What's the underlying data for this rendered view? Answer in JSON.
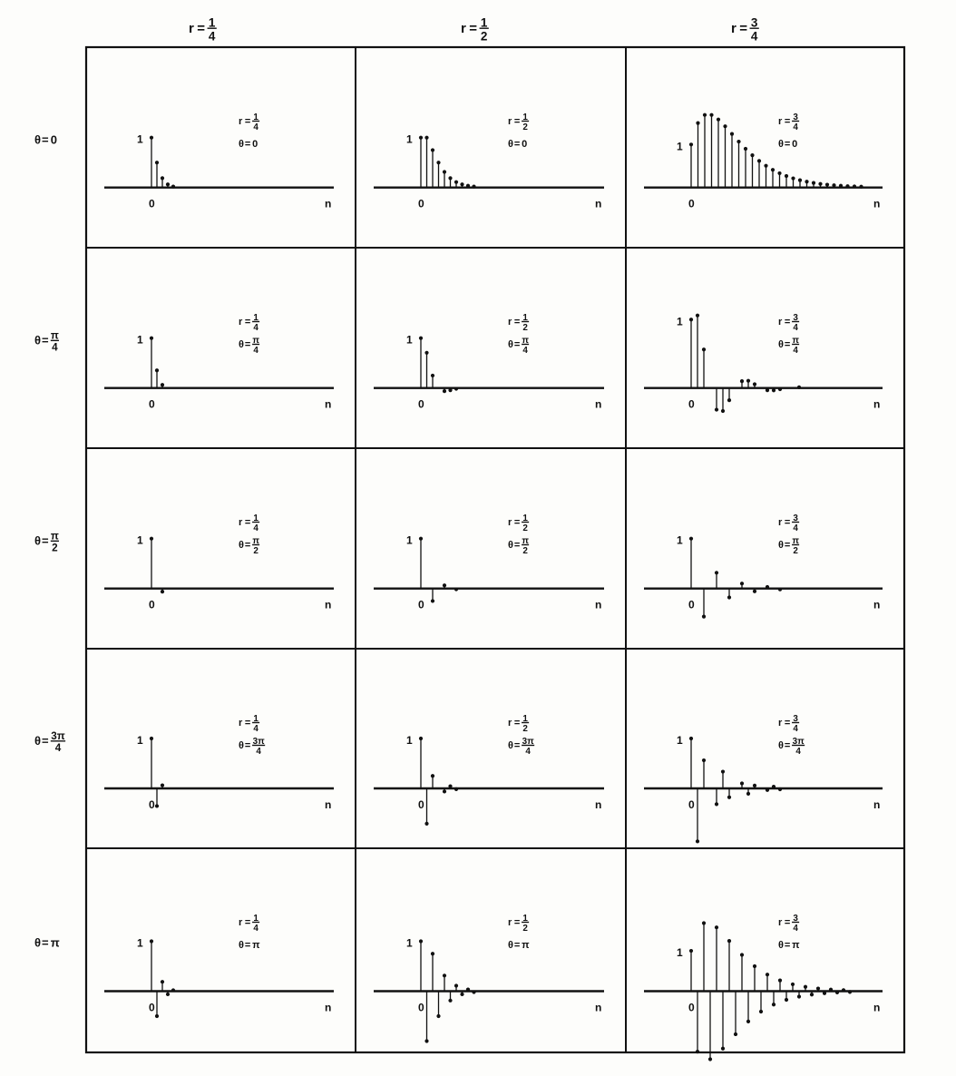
{
  "figure": {
    "column_headers": [
      {
        "lhs": "r",
        "num": "1",
        "den": "4"
      },
      {
        "lhs": "r",
        "num": "1",
        "den": "2"
      },
      {
        "lhs": "r",
        "num": "3",
        "den": "4"
      }
    ],
    "row_headers": [
      {
        "lhs": "θ",
        "whole": "0"
      },
      {
        "lhs": "θ",
        "num": "π",
        "den": "4"
      },
      {
        "lhs": "θ",
        "num": "π",
        "den": "2"
      },
      {
        "lhs": "θ",
        "num": "3π",
        "den": "4"
      },
      {
        "lhs": "θ",
        "whole": "π"
      }
    ],
    "axis_labels": {
      "origin": "0",
      "unit": "1",
      "x": "n"
    },
    "colors": {
      "ink": "#111111",
      "background": "#fdfdfb"
    }
  },
  "chart_data": {
    "type": "stem",
    "description_of_sequence": "impulse response h[n] = r^n sin((n+1)θ)/sin θ",
    "r_values": [
      0.25,
      0.5,
      0.75
    ],
    "theta_values": [
      0,
      0.7854,
      1.5708,
      2.3562,
      3.1416
    ],
    "r_labels": [
      "1/4",
      "1/2",
      "3/4"
    ],
    "theta_labels": [
      "0",
      "π/4",
      "π/2",
      "3π/4",
      "π"
    ],
    "n_range": [
      0,
      30
    ],
    "panels": [
      {
        "row": 0,
        "col": 0,
        "r": 0.25,
        "theta": 0,
        "label_r": {
          "lhs": "r",
          "num": "1",
          "den": "4"
        },
        "label_theta": {
          "lhs": "θ",
          "whole": "0"
        }
      },
      {
        "row": 0,
        "col": 1,
        "r": 0.5,
        "theta": 0,
        "label_r": {
          "lhs": "r",
          "num": "1",
          "den": "2"
        },
        "label_theta": {
          "lhs": "θ",
          "whole": "0"
        }
      },
      {
        "row": 0,
        "col": 2,
        "r": 0.75,
        "theta": 0,
        "label_r": {
          "lhs": "r",
          "num": "3",
          "den": "4"
        },
        "label_theta": {
          "lhs": "θ",
          "whole": "0"
        }
      },
      {
        "row": 1,
        "col": 0,
        "r": 0.25,
        "theta": 0.7854,
        "label_r": {
          "lhs": "r",
          "num": "1",
          "den": "4"
        },
        "label_theta": {
          "lhs": "θ",
          "num": "π",
          "den": "4"
        }
      },
      {
        "row": 1,
        "col": 1,
        "r": 0.5,
        "theta": 0.7854,
        "label_r": {
          "lhs": "r",
          "num": "1",
          "den": "2"
        },
        "label_theta": {
          "lhs": "θ",
          "num": "π",
          "den": "4"
        }
      },
      {
        "row": 1,
        "col": 2,
        "r": 0.75,
        "theta": 0.7854,
        "label_r": {
          "lhs": "r",
          "num": "3",
          "den": "4"
        },
        "label_theta": {
          "lhs": "θ",
          "num": "π",
          "den": "4"
        }
      },
      {
        "row": 2,
        "col": 0,
        "r": 0.25,
        "theta": 1.5708,
        "label_r": {
          "lhs": "r",
          "num": "1",
          "den": "4"
        },
        "label_theta": {
          "lhs": "θ",
          "num": "π",
          "den": "2"
        }
      },
      {
        "row": 2,
        "col": 1,
        "r": 0.5,
        "theta": 1.5708,
        "label_r": {
          "lhs": "r",
          "num": "1",
          "den": "2"
        },
        "label_theta": {
          "lhs": "θ",
          "num": "π",
          "den": "2"
        }
      },
      {
        "row": 2,
        "col": 2,
        "r": 0.75,
        "theta": 1.5708,
        "label_r": {
          "lhs": "r",
          "num": "3",
          "den": "4"
        },
        "label_theta": {
          "lhs": "θ",
          "num": "π",
          "den": "2"
        }
      },
      {
        "row": 3,
        "col": 0,
        "r": 0.25,
        "theta": 2.3562,
        "label_r": {
          "lhs": "r",
          "num": "1",
          "den": "4"
        },
        "label_theta": {
          "lhs": "θ",
          "num": "3π",
          "den": "4"
        }
      },
      {
        "row": 3,
        "col": 1,
        "r": 0.5,
        "theta": 2.3562,
        "label_r": {
          "lhs": "r",
          "num": "1",
          "den": "2"
        },
        "label_theta": {
          "lhs": "θ",
          "num": "3π",
          "den": "4"
        }
      },
      {
        "row": 3,
        "col": 2,
        "r": 0.75,
        "theta": 2.3562,
        "label_r": {
          "lhs": "r",
          "num": "3",
          "den": "4"
        },
        "label_theta": {
          "lhs": "θ",
          "num": "3π",
          "den": "4"
        }
      },
      {
        "row": 4,
        "col": 0,
        "r": 0.25,
        "theta": 3.1416,
        "label_r": {
          "lhs": "r",
          "num": "1",
          "den": "4"
        },
        "label_theta": {
          "lhs": "θ",
          "whole": "π"
        }
      },
      {
        "row": 4,
        "col": 1,
        "r": 0.5,
        "theta": 3.1416,
        "label_r": {
          "lhs": "r",
          "num": "1",
          "den": "2"
        },
        "label_theta": {
          "lhs": "θ",
          "whole": "π"
        }
      },
      {
        "row": 4,
        "col": 2,
        "r": 0.75,
        "theta": 3.1416,
        "label_r": {
          "lhs": "r",
          "num": "3",
          "den": "4"
        },
        "label_theta": {
          "lhs": "θ",
          "whole": "π"
        }
      }
    ],
    "grid": false,
    "legend": "none"
  }
}
